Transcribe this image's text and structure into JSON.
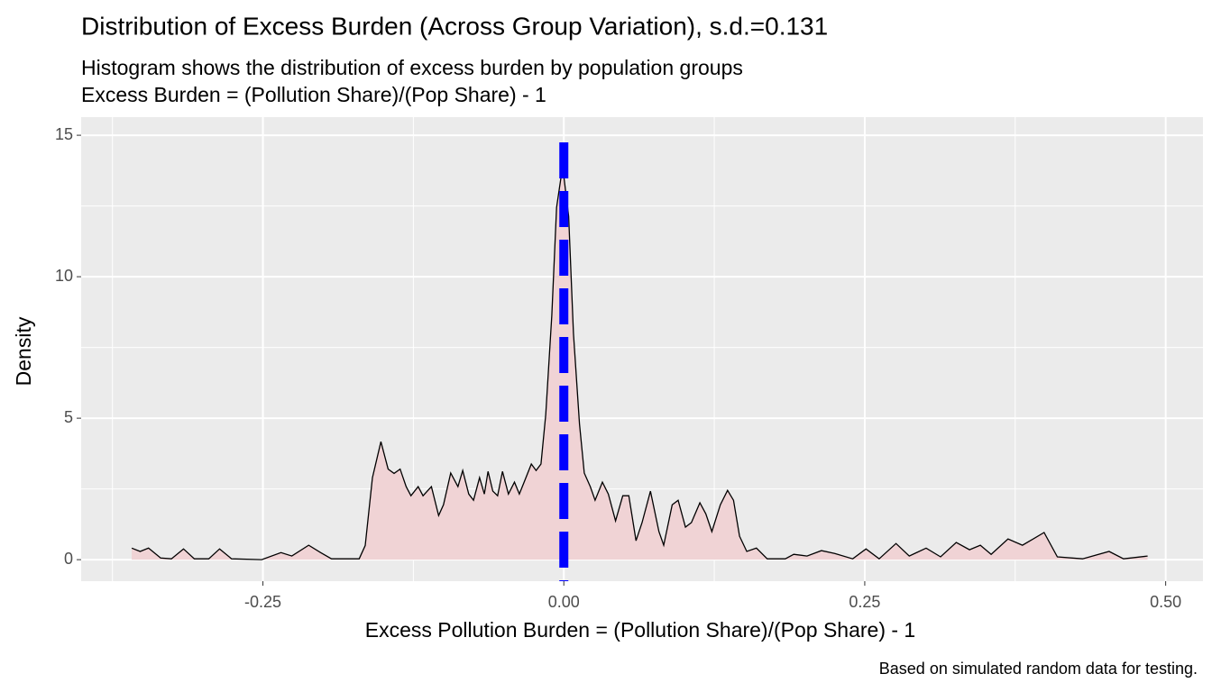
{
  "chart_data": {
    "type": "density",
    "title": "Distribution of Excess Burden (Across Group Variation), s.d.=0.131",
    "subtitle": [
      "Histogram shows the distribution of excess burden by population groups",
      "Excess Burden = (Pollution Share)/(Pop Share) - 1"
    ],
    "xlabel": "Excess Pollution Burden  = (Pollution Share)/(Pop Share) - 1",
    "ylabel": "Density",
    "caption": "Based on simulated random data for testing.",
    "x": [
      -0.359,
      -0.352,
      -0.345,
      -0.335,
      -0.326,
      -0.316,
      -0.307,
      -0.295,
      -0.286,
      -0.276,
      -0.251,
      -0.235,
      -0.226,
      -0.212,
      -0.202,
      -0.193,
      -0.17,
      -0.165,
      -0.159,
      -0.152,
      -0.146,
      -0.141,
      -0.136,
      -0.131,
      -0.127,
      -0.121,
      -0.117,
      -0.11,
      -0.104,
      -0.1,
      -0.094,
      -0.088,
      -0.084,
      -0.079,
      -0.075,
      -0.07,
      -0.066,
      -0.063,
      -0.059,
      -0.055,
      -0.051,
      -0.046,
      -0.041,
      -0.037,
      -0.033,
      -0.027,
      -0.023,
      -0.019,
      -0.015,
      -0.01,
      -0.006,
      -0.001,
      0.004,
      0.008,
      0.013,
      0.017,
      0.022,
      0.026,
      0.032,
      0.037,
      0.043,
      0.049,
      0.054,
      0.06,
      0.065,
      0.072,
      0.079,
      0.083,
      0.09,
      0.095,
      0.101,
      0.106,
      0.113,
      0.118,
      0.123,
      0.13,
      0.136,
      0.141,
      0.146,
      0.152,
      0.16,
      0.169,
      0.184,
      0.191,
      0.202,
      0.214,
      0.225,
      0.24,
      0.251,
      0.262,
      0.276,
      0.287,
      0.301,
      0.313,
      0.326,
      0.337,
      0.346,
      0.355,
      0.369,
      0.381,
      0.399,
      0.41,
      0.431,
      0.453,
      0.465,
      0.485
    ],
    "values": [
      0.41,
      0.29,
      0.41,
      0.06,
      0.03,
      0.38,
      0.03,
      0.03,
      0.38,
      0.03,
      0,
      0.25,
      0.13,
      0.51,
      0.25,
      0.03,
      0.03,
      0.5,
      2.9,
      4.17,
      3.2,
      3.05,
      3.2,
      2.58,
      2.26,
      2.58,
      2.26,
      2.58,
      1.56,
      1.94,
      3.06,
      2.58,
      3.15,
      2.32,
      2.1,
      2.9,
      2.32,
      3.12,
      2.42,
      2.26,
      3.12,
      2.32,
      2.74,
      2.32,
      2.74,
      3.38,
      3.15,
      3.38,
      5.13,
      8.63,
      12.45,
      13.9,
      12.13,
      8.0,
      4.8,
      3.06,
      2.58,
      2.1,
      2.74,
      2.32,
      1.37,
      2.26,
      2.26,
      0.67,
      1.31,
      2.42,
      0.99,
      0.51,
      1.94,
      2.1,
      1.15,
      1.31,
      2.01,
      1.62,
      0.99,
      1.94,
      2.45,
      2.1,
      0.83,
      0.29,
      0.41,
      0.03,
      0.03,
      0.19,
      0.13,
      0.32,
      0.22,
      0.03,
      0.38,
      0.03,
      0.57,
      0.13,
      0.41,
      0.1,
      0.61,
      0.35,
      0.51,
      0.19,
      0.73,
      0.51,
      0.96,
      0.1,
      0.03,
      0.29,
      0.03,
      0.13
    ],
    "fill": "#f0d3d5",
    "line_color": "#000000",
    "vline": 0,
    "vline_color": "#0000ff",
    "xlim": [
      -0.401,
      0.531
    ],
    "ylim": [
      -0.76,
      15.64
    ],
    "xticks": [
      -0.25,
      {
        "value": 0,
        "label": "0.00"
      },
      0.25,
      {
        "value": 0.5,
        "label": "0.50"
      }
    ],
    "yticks": [
      0,
      5,
      10,
      15
    ],
    "xminor": [
      -0.375,
      -0.125,
      0.125,
      0.375
    ],
    "yminor": [
      2.5,
      7.5,
      12.5
    ],
    "grid": true
  }
}
